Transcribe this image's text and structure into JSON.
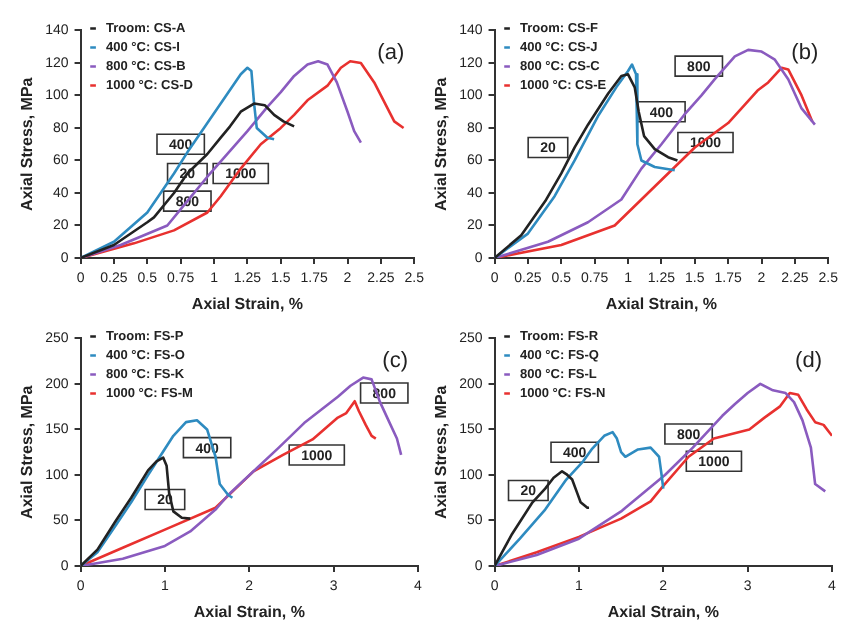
{
  "chart_data": [
    {
      "type": "line",
      "xlabel": "Axial Strain, %",
      "ylabel": "Axial Stress, MPa",
      "xlim": [
        0,
        2.5
      ],
      "xticks": [
        0,
        0.25,
        0.5,
        0.75,
        1,
        1.25,
        1.5,
        1.75,
        2,
        2.25,
        2.5
      ],
      "ylim": [
        0,
        140
      ],
      "yticks": [
        0,
        20,
        40,
        60,
        80,
        100,
        120,
        140
      ],
      "grid": false,
      "legend": "top left",
      "annotations": [
        "(a)",
        {
          "text": "400",
          "x": 0.75,
          "y": 70
        },
        {
          "text": "20",
          "x": 0.8,
          "y": 52
        },
        {
          "text": "800",
          "x": 0.8,
          "y": 35
        },
        {
          "text": "1000",
          "x": 1.2,
          "y": 52
        }
      ],
      "series": [
        {
          "name": "Troom: CS-A",
          "color": "#222222",
          "x": [
            0,
            0.25,
            0.5,
            0.55,
            0.7,
            0.8,
            0.95,
            1.05,
            1.12,
            1.2,
            1.3,
            1.38,
            1.45,
            1.52,
            1.6
          ],
          "values": [
            0,
            8,
            22,
            25,
            40,
            52,
            64,
            74,
            81,
            90,
            95,
            94,
            88,
            84,
            81
          ]
        },
        {
          "name": "400 °C: CS-I",
          "color": "#2e8bc0",
          "x": [
            0,
            0.25,
            0.5,
            0.6,
            0.7,
            0.8,
            0.95,
            1.1,
            1.2,
            1.25,
            1.28,
            1.3,
            1.32,
            1.4,
            1.45
          ],
          "values": [
            0,
            10,
            28,
            40,
            52,
            65,
            83,
            101,
            113,
            117,
            115,
            95,
            80,
            74,
            73
          ]
        },
        {
          "name": "800 °C: CS-B",
          "color": "#8a5bbf",
          "x": [
            0,
            0.3,
            0.65,
            0.8,
            0.95,
            1.1,
            1.25,
            1.4,
            1.5,
            1.6,
            1.7,
            1.78,
            1.85,
            1.92,
            2,
            2.05,
            2.1
          ],
          "values": [
            0,
            8,
            20,
            35,
            50,
            64,
            78,
            93,
            102,
            112,
            119,
            121,
            119,
            108,
            90,
            78,
            71
          ]
        },
        {
          "name": "1000 °C: CS-D",
          "color": "#e8312f",
          "x": [
            0,
            0.4,
            0.7,
            0.95,
            1.05,
            1.2,
            1.35,
            1.5,
            1.6,
            1.7,
            1.85,
            1.95,
            2.02,
            2.1,
            2.2,
            2.3,
            2.35,
            2.42
          ],
          "values": [
            0,
            9,
            17,
            28,
            38,
            55,
            70,
            80,
            88,
            97,
            106,
            117,
            121,
            120,
            108,
            92,
            84,
            80
          ]
        }
      ]
    },
    {
      "type": "line",
      "xlabel": "Axial Strain, %",
      "ylabel": "Axial Stress, MPa",
      "xlim": [
        0,
        2.5
      ],
      "xticks": [
        0,
        0.25,
        0.5,
        0.75,
        1,
        1.25,
        1.5,
        1.75,
        2,
        2.25,
        2.5
      ],
      "ylim": [
        0,
        140
      ],
      "yticks": [
        0,
        20,
        40,
        60,
        80,
        100,
        120,
        140
      ],
      "grid": false,
      "legend": "top left",
      "annotations": [
        "(b)",
        {
          "text": "20",
          "x": 0.4,
          "y": 68
        },
        {
          "text": "400",
          "x": 1.25,
          "y": 90
        },
        {
          "text": "800",
          "x": 1.53,
          "y": 118
        },
        {
          "text": "1000",
          "x": 1.58,
          "y": 71
        }
      ],
      "series": [
        {
          "name": "Troom: CS-F",
          "color": "#222222",
          "x": [
            0,
            0.2,
            0.38,
            0.5,
            0.6,
            0.7,
            0.85,
            0.95,
            1,
            1.05,
            1.08,
            1.12,
            1.2,
            1.3,
            1.37
          ],
          "values": [
            0,
            14,
            35,
            52,
            68,
            82,
            101,
            112,
            113,
            105,
            90,
            75,
            67,
            62,
            60
          ]
        },
        {
          "name": "400 °C: CS-J",
          "color": "#2e8bc0",
          "x": [
            0,
            0.25,
            0.45,
            0.6,
            0.78,
            0.92,
            1,
            1.03,
            1.06,
            1.07,
            1.1,
            1.2,
            1.35
          ],
          "values": [
            0,
            15,
            38,
            60,
            88,
            106,
            115,
            119,
            113,
            70,
            60,
            56,
            54
          ]
        },
        {
          "name": "800 °C: CS-C",
          "color": "#8a5bbf",
          "x": [
            0,
            0.4,
            0.7,
            0.95,
            1.1,
            1.25,
            1.42,
            1.55,
            1.65,
            1.8,
            1.9,
            2,
            2.1,
            2.2,
            2.3,
            2.4
          ],
          "values": [
            0,
            10,
            22,
            36,
            55,
            70,
            88,
            100,
            110,
            124,
            128,
            127,
            122,
            110,
            92,
            82
          ]
        },
        {
          "name": "1000 °C: CS-E",
          "color": "#e8312f",
          "x": [
            0,
            0.5,
            0.9,
            1.1,
            1.3,
            1.5,
            1.75,
            1.85,
            1.97,
            2.05,
            2.15,
            2.2,
            2.3,
            2.38
          ],
          "values": [
            0,
            8,
            20,
            36,
            52,
            68,
            83,
            92,
            103,
            108,
            117,
            116,
            100,
            84
          ]
        }
      ]
    },
    {
      "type": "line",
      "xlabel": "Axial Strain, %",
      "ylabel": "Axial Stress, MPa",
      "xlim": [
        0,
        4
      ],
      "xticks": [
        0,
        1,
        2,
        3,
        4
      ],
      "ylim": [
        0,
        250
      ],
      "yticks": [
        0,
        50,
        100,
        150,
        200,
        250
      ],
      "grid": false,
      "legend": "top left",
      "annotations": [
        "(c)",
        {
          "text": "400",
          "x": 1.5,
          "y": 130
        },
        {
          "text": "20",
          "x": 1,
          "y": 73
        },
        {
          "text": "800",
          "x": 3.6,
          "y": 190
        },
        {
          "text": "1000",
          "x": 2.8,
          "y": 122
        }
      ],
      "series": [
        {
          "name": "Troom: FS-P",
          "color": "#222222",
          "x": [
            0,
            0.2,
            0.42,
            0.6,
            0.8,
            0.9,
            0.98,
            1.02,
            1.05,
            1.1,
            1.2,
            1.3
          ],
          "values": [
            0,
            18,
            50,
            75,
            105,
            115,
            119,
            110,
            80,
            60,
            53,
            52
          ]
        },
        {
          "name": "400 °C: FS-O",
          "color": "#2e8bc0",
          "x": [
            0,
            0.2,
            0.42,
            0.6,
            0.8,
            1.1,
            1.25,
            1.38,
            1.5,
            1.6,
            1.65,
            1.75,
            1.8
          ],
          "values": [
            0,
            15,
            45,
            70,
            100,
            143,
            158,
            160,
            150,
            120,
            90,
            78,
            75
          ]
        },
        {
          "name": "800 °C: FS-K",
          "color": "#8a5bbf",
          "x": [
            0,
            0.5,
            1,
            1.3,
            1.6,
            1.75,
            2.05,
            2.35,
            2.65,
            3.05,
            3.2,
            3.35,
            3.45,
            3.55,
            3.65,
            3.75,
            3.8
          ],
          "values": [
            0,
            8,
            22,
            38,
            62,
            78,
            104,
            130,
            157,
            186,
            198,
            207,
            205,
            180,
            160,
            140,
            122
          ]
        },
        {
          "name": "1000 °C: FS-M",
          "color": "#e8312f",
          "x": [
            0,
            0.5,
            1,
            1.6,
            2.05,
            2.4,
            2.75,
            3.05,
            3.15,
            3.25,
            3.3,
            3.38,
            3.45,
            3.5
          ],
          "values": [
            0,
            20,
            40,
            64,
            104,
            122,
            139,
            163,
            168,
            181,
            170,
            155,
            143,
            140
          ]
        }
      ]
    },
    {
      "type": "line",
      "xlabel": "Axial Strain, %",
      "ylabel": "Axial Stress, MPa",
      "xlim": [
        0,
        4
      ],
      "xticks": [
        0,
        1,
        2,
        3,
        4
      ],
      "ylim": [
        0,
        250
      ],
      "yticks": [
        0,
        50,
        100,
        150,
        200,
        250
      ],
      "grid": false,
      "legend": "top left",
      "annotations": [
        "(d)",
        {
          "text": "20",
          "x": 0.4,
          "y": 83
        },
        {
          "text": "400",
          "x": 0.95,
          "y": 125
        },
        {
          "text": "800",
          "x": 2.3,
          "y": 145
        },
        {
          "text": "1000",
          "x": 2.6,
          "y": 115
        }
      ],
      "series": [
        {
          "name": "Troom: FS-R",
          "color": "#222222",
          "x": [
            0,
            0.2,
            0.45,
            0.6,
            0.7,
            0.8,
            0.85,
            0.92,
            0.98,
            1.02,
            1.1,
            1.12
          ],
          "values": [
            0,
            34,
            70,
            85,
            97,
            104,
            101,
            95,
            80,
            70,
            64,
            64
          ]
        },
        {
          "name": "400 °C: FS-Q",
          "color": "#2e8bc0",
          "x": [
            0,
            0.3,
            0.6,
            0.85,
            1.05,
            1.15,
            1.3,
            1.4,
            1.45,
            1.5,
            1.55,
            1.7,
            1.85,
            1.95,
            1.98,
            2
          ],
          "values": [
            0,
            30,
            62,
            95,
            115,
            128,
            143,
            147,
            140,
            125,
            120,
            128,
            130,
            120,
            100,
            85
          ]
        },
        {
          "name": "800 °C: FS-L",
          "color": "#8a5bbf",
          "x": [
            0,
            0.5,
            1,
            1.5,
            2.02,
            2.35,
            2.7,
            2.85,
            3,
            3.15,
            3.3,
            3.45,
            3.55,
            3.65,
            3.75,
            3.8,
            3.92
          ],
          "values": [
            0,
            12,
            30,
            60,
            100,
            130,
            165,
            178,
            190,
            200,
            193,
            190,
            180,
            160,
            130,
            90,
            82
          ]
        },
        {
          "name": "1000 °C: FS-N",
          "color": "#e8312f",
          "x": [
            0,
            0.5,
            1,
            1.5,
            1.85,
            2,
            2.3,
            2.6,
            3.02,
            3.2,
            3.38,
            3.5,
            3.6,
            3.7,
            3.8,
            3.9,
            4
          ],
          "values": [
            0,
            15,
            32,
            52,
            71,
            88,
            120,
            140,
            150,
            163,
            175,
            190,
            188,
            172,
            158,
            155,
            143
          ]
        }
      ]
    }
  ]
}
